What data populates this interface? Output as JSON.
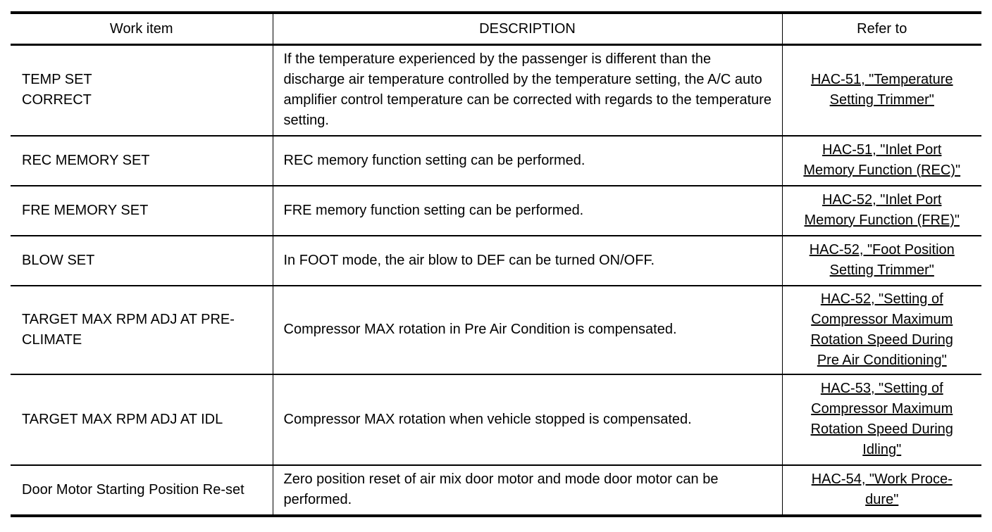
{
  "headers": {
    "work_item": "Work item",
    "description": "DESCRIPTION",
    "refer_to": "Refer to"
  },
  "rows": [
    {
      "item": "TEMP SET CORRECT",
      "description": "If the temperature experienced by the passenger is different than the discharge air temperature controlled by the temperature setting, the A/C auto amplifier control temperature can be corrected with regards to the temperature setting.",
      "refer": [
        "HAC-51, \"Temperature",
        "Setting Trimmer\""
      ]
    },
    {
      "item": "REC MEMORY SET",
      "description": "REC memory function setting can be performed.",
      "refer": [
        "HAC-51, \"Inlet Port",
        "Memory Function (REC)\""
      ]
    },
    {
      "item": "FRE MEMORY SET",
      "description": "FRE memory function setting can be performed.",
      "refer": [
        "HAC-52, \"Inlet Port",
        "Memory Function (FRE)\""
      ]
    },
    {
      "item": "BLOW SET",
      "description": "In FOOT mode, the air blow to DEF can be turned ON/OFF.",
      "refer": [
        "HAC-52, \"Foot Position",
        "Setting Trimmer\""
      ]
    },
    {
      "item": "TARGET MAX RPM ADJ AT PRE-CLIMATE",
      "description": "Compressor MAX rotation in Pre Air Condition is compensated.",
      "refer": [
        "HAC-52, \"Setting of",
        "Compressor Maximum",
        "Rotation Speed During",
        "Pre Air Conditioning\""
      ]
    },
    {
      "item": "TARGET MAX RPM ADJ AT IDL",
      "description": "Compressor MAX rotation when vehicle stopped is compensated.",
      "refer": [
        "HAC-53, \"Setting of",
        "Compressor Maximum",
        "Rotation Speed During",
        "Idling\""
      ]
    },
    {
      "item": "Door Motor Starting Position Re-set",
      "description": "Zero position reset of air mix door motor and mode door motor can be performed.",
      "refer": [
        "HAC-54, \"Work Proce-",
        "dure\""
      ]
    }
  ]
}
